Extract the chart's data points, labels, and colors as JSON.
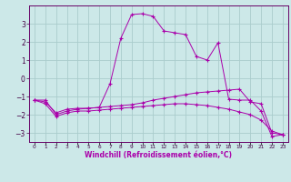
{
  "xlabel": "Windchill (Refroidissement éolien,°C)",
  "background_color": "#cce8e8",
  "grid_color": "#aacccc",
  "line_color": "#aa00aa",
  "x_hours": [
    0,
    1,
    2,
    3,
    4,
    5,
    6,
    7,
    8,
    9,
    10,
    11,
    12,
    13,
    14,
    15,
    16,
    17,
    18,
    19,
    20,
    21,
    22,
    23
  ],
  "series1": [
    -1.2,
    -1.2,
    -2.0,
    -1.8,
    -1.7,
    -1.65,
    -1.6,
    -0.3,
    2.2,
    3.5,
    3.55,
    3.4,
    2.6,
    2.5,
    2.4,
    1.2,
    1.0,
    1.95,
    -1.15,
    -1.2,
    -1.2,
    -1.8,
    -3.2,
    -3.1
  ],
  "series2": [
    -1.2,
    -1.3,
    -1.9,
    -1.7,
    -1.65,
    -1.65,
    -1.6,
    -1.55,
    -1.5,
    -1.45,
    -1.35,
    -1.2,
    -1.1,
    -1.0,
    -0.9,
    -0.8,
    -0.75,
    -0.7,
    -0.65,
    -0.6,
    -1.3,
    -1.4,
    -3.0,
    -3.1
  ],
  "series3": [
    -1.2,
    -1.4,
    -2.1,
    -1.9,
    -1.8,
    -1.8,
    -1.75,
    -1.7,
    -1.65,
    -1.6,
    -1.55,
    -1.5,
    -1.45,
    -1.4,
    -1.4,
    -1.45,
    -1.5,
    -1.6,
    -1.7,
    -1.85,
    -2.0,
    -2.3,
    -2.9,
    -3.1
  ],
  "ylim": [
    -3.5,
    4.0
  ],
  "yticks": [
    -3,
    -2,
    -1,
    0,
    1,
    2,
    3
  ],
  "xlim": [
    -0.5,
    23.5
  ]
}
